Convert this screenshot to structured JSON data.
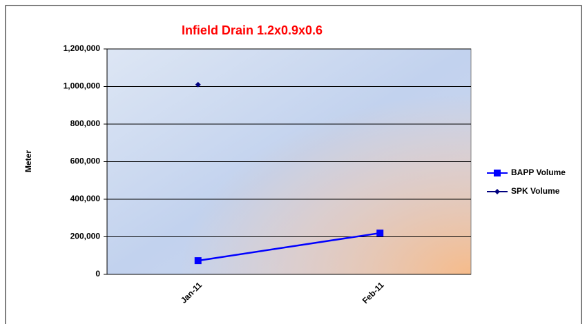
{
  "chart_data": {
    "type": "line",
    "title": "Infield Drain 1.2x0.9x0.6",
    "ylabel": "Meter",
    "categories": [
      "Jan-11",
      "Feb-11"
    ],
    "series": [
      {
        "name": "BAPP Volume",
        "color": "#0000ff",
        "marker": "square",
        "values": [
          73000,
          220000
        ]
      },
      {
        "name": "SPK Volume",
        "color": "#000080",
        "marker": "diamond",
        "values": [
          1010000,
          null
        ]
      }
    ],
    "ylim": [
      0,
      1200000
    ],
    "yticks": [
      {
        "value": 0,
        "label": "0"
      },
      {
        "value": 200000,
        "label": "200,000"
      },
      {
        "value": 400000,
        "label": "400,000"
      },
      {
        "value": 600000,
        "label": "600,000"
      },
      {
        "value": 800000,
        "label": "800,000"
      },
      {
        "value": 1000000,
        "label": "1,000,000"
      },
      {
        "value": 1200000,
        "label": "1,200,000"
      }
    ],
    "grid": true,
    "legend": "right"
  }
}
